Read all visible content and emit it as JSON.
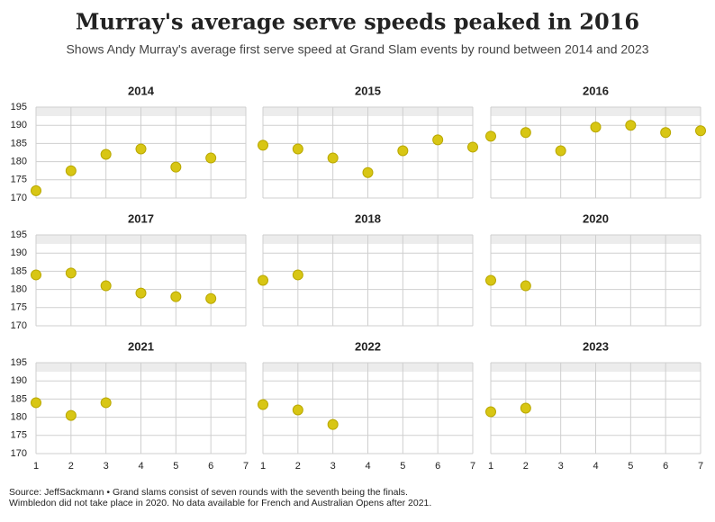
{
  "header": {
    "title": "Murray's average serve speeds peaked in 2016",
    "subtitle": "Shows Andy Murray's average first serve speed at Grand Slam events by round between 2014 and 2023"
  },
  "footer": {
    "lines": [
      "Source: JeffSackmann • Grand slams consist of seven rounds with the seventh being the finals.",
      "Wimbledon did not take place in 2020. No data available for French and Australian Opens after 2021."
    ]
  },
  "chart_data": [
    {
      "type": "scatter",
      "title": "2014",
      "x": [
        1,
        2,
        3,
        4,
        5,
        6
      ],
      "values": [
        172,
        177.5,
        182,
        183.5,
        178.5,
        181
      ],
      "color": "#d8c614",
      "xlim": [
        1,
        7
      ],
      "ylim": [
        170,
        195
      ],
      "xticks": [
        1,
        2,
        3,
        4,
        5,
        6,
        7
      ],
      "yticks": [
        170,
        175,
        180,
        185,
        190,
        195
      ],
      "grid": true
    },
    {
      "type": "scatter",
      "title": "2015",
      "x": [
        1,
        2,
        3,
        4,
        5,
        6,
        7
      ],
      "values": [
        184.5,
        183.5,
        181,
        177,
        183,
        186,
        184
      ],
      "color": "#d8c614",
      "xlim": [
        1,
        7
      ],
      "ylim": [
        170,
        195
      ],
      "xticks": [
        1,
        2,
        3,
        4,
        5,
        6,
        7
      ],
      "yticks": [
        170,
        175,
        180,
        185,
        190,
        195
      ],
      "grid": true
    },
    {
      "type": "scatter",
      "title": "2016",
      "x": [
        1,
        2,
        3,
        4,
        5,
        6,
        7
      ],
      "values": [
        187,
        188,
        183,
        189.5,
        190,
        188,
        188.5
      ],
      "color": "#d8c614",
      "xlim": [
        1,
        7
      ],
      "ylim": [
        170,
        195
      ],
      "xticks": [
        1,
        2,
        3,
        4,
        5,
        6,
        7
      ],
      "yticks": [
        170,
        175,
        180,
        185,
        190,
        195
      ],
      "grid": true
    },
    {
      "type": "scatter",
      "title": "2017",
      "x": [
        1,
        2,
        3,
        4,
        5,
        6
      ],
      "values": [
        184,
        184.5,
        181,
        179,
        178,
        177.5
      ],
      "color": "#d8c614",
      "xlim": [
        1,
        7
      ],
      "ylim": [
        170,
        195
      ],
      "xticks": [
        1,
        2,
        3,
        4,
        5,
        6,
        7
      ],
      "yticks": [
        170,
        175,
        180,
        185,
        190,
        195
      ],
      "grid": true
    },
    {
      "type": "scatter",
      "title": "2018",
      "x": [
        1,
        2
      ],
      "values": [
        182.5,
        184
      ],
      "color": "#d8c614",
      "xlim": [
        1,
        7
      ],
      "ylim": [
        170,
        195
      ],
      "xticks": [
        1,
        2,
        3,
        4,
        5,
        6,
        7
      ],
      "yticks": [
        170,
        175,
        180,
        185,
        190,
        195
      ],
      "grid": true
    },
    {
      "type": "scatter",
      "title": "2020",
      "x": [
        1,
        2
      ],
      "values": [
        182.5,
        181
      ],
      "color": "#d8c614",
      "xlim": [
        1,
        7
      ],
      "ylim": [
        170,
        195
      ],
      "xticks": [
        1,
        2,
        3,
        4,
        5,
        6,
        7
      ],
      "yticks": [
        170,
        175,
        180,
        185,
        190,
        195
      ],
      "grid": true
    },
    {
      "type": "scatter",
      "title": "2021",
      "x": [
        1,
        2,
        3
      ],
      "values": [
        184,
        180.5,
        184
      ],
      "color": "#d8c614",
      "xlim": [
        1,
        7
      ],
      "ylim": [
        170,
        195
      ],
      "xticks": [
        1,
        2,
        3,
        4,
        5,
        6,
        7
      ],
      "yticks": [
        170,
        175,
        180,
        185,
        190,
        195
      ],
      "grid": true
    },
    {
      "type": "scatter",
      "title": "2022",
      "x": [
        1,
        2,
        3
      ],
      "values": [
        183.5,
        182,
        178
      ],
      "color": "#d8c614",
      "xlim": [
        1,
        7
      ],
      "ylim": [
        170,
        195
      ],
      "xticks": [
        1,
        2,
        3,
        4,
        5,
        6,
        7
      ],
      "yticks": [
        170,
        175,
        180,
        185,
        190,
        195
      ],
      "grid": true
    },
    {
      "type": "scatter",
      "title": "2023",
      "x": [
        1,
        2
      ],
      "values": [
        181.5,
        182.5
      ],
      "color": "#d8c614",
      "xlim": [
        1,
        7
      ],
      "ylim": [
        170,
        195
      ],
      "xticks": [
        1,
        2,
        3,
        4,
        5,
        6,
        7
      ],
      "yticks": [
        170,
        175,
        180,
        185,
        190,
        195
      ],
      "grid": true
    }
  ]
}
